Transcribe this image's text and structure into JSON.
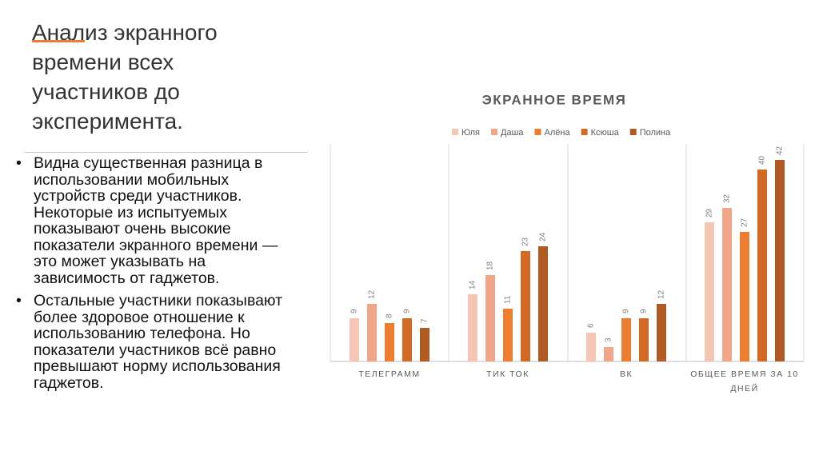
{
  "slide": {
    "title": "Анализ экранного времени всех участников до эксперимента.",
    "bullets": [
      "Видна существенная разница в использовании мобильных устройств среди участников. Некоторые из испытуемых показывают очень высокие показатели экранного времени — это может указывать на зависимость от гаджетов.",
      "Остальные участники показывают более здоровое отношение к использованию телефона. Но показатели участников всё равно превышают норму использования гаджетов."
    ]
  },
  "chart_data": {
    "type": "bar",
    "title": "ЭКРАННОЕ ВРЕМЯ",
    "categories": [
      "ТЕЛЕГРАММ",
      "ТИК ТОК",
      "ВК",
      "ОБЩЕЕ ВРЕМЯ ЗА 10 ДНЕЙ"
    ],
    "series": [
      {
        "name": "Юля",
        "color": "#f5c6b4",
        "values": [
          9,
          14,
          6,
          29
        ]
      },
      {
        "name": "Даша",
        "color": "#f1a68a",
        "values": [
          12,
          18,
          3,
          32
        ]
      },
      {
        "name": "Алёна",
        "color": "#ed7d31",
        "values": [
          8,
          11,
          9,
          27
        ]
      },
      {
        "name": "Ксюша",
        "color": "#d26a26",
        "values": [
          9,
          23,
          9,
          40
        ]
      },
      {
        "name": "Полина",
        "color": "#b05a24",
        "values": [
          7,
          24,
          12,
          42
        ]
      }
    ],
    "ylim": [
      0,
      45
    ]
  }
}
